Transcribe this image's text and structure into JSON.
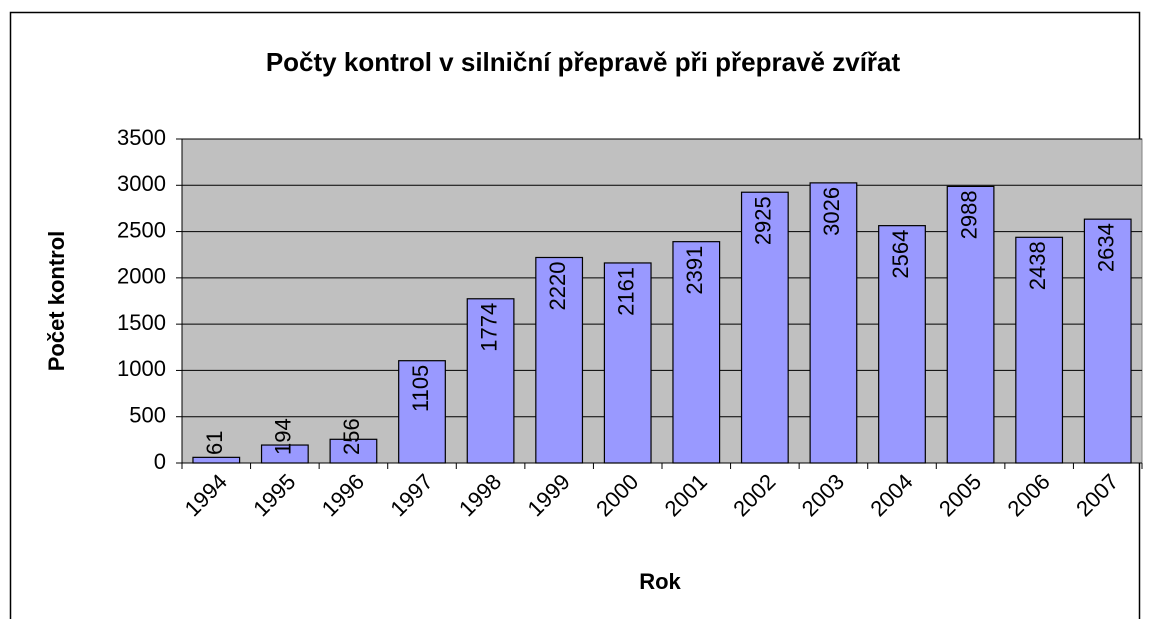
{
  "chart_data": {
    "type": "bar",
    "title": "Počty kontrol v silniční přepravě při přepravě zvířat",
    "x_label": "Rok",
    "y_label": "Počet kontrol",
    "categories": [
      "1994",
      "1995",
      "1996",
      "1997",
      "1998",
      "1999",
      "2000",
      "2001",
      "2002",
      "2003",
      "2004",
      "2005",
      "2006",
      "2007"
    ],
    "values": [
      61,
      194,
      256,
      1105,
      1774,
      2220,
      2161,
      2391,
      2925,
      3026,
      2564,
      2988,
      2438,
      2634
    ],
    "color": "#9999ff",
    "plot_background": "#c0c0c0",
    "ylim": [
      0,
      3500
    ],
    "yticks": [
      0,
      500,
      1000,
      1500,
      2000,
      2500,
      3000,
      3500
    ],
    "grid": true
  }
}
